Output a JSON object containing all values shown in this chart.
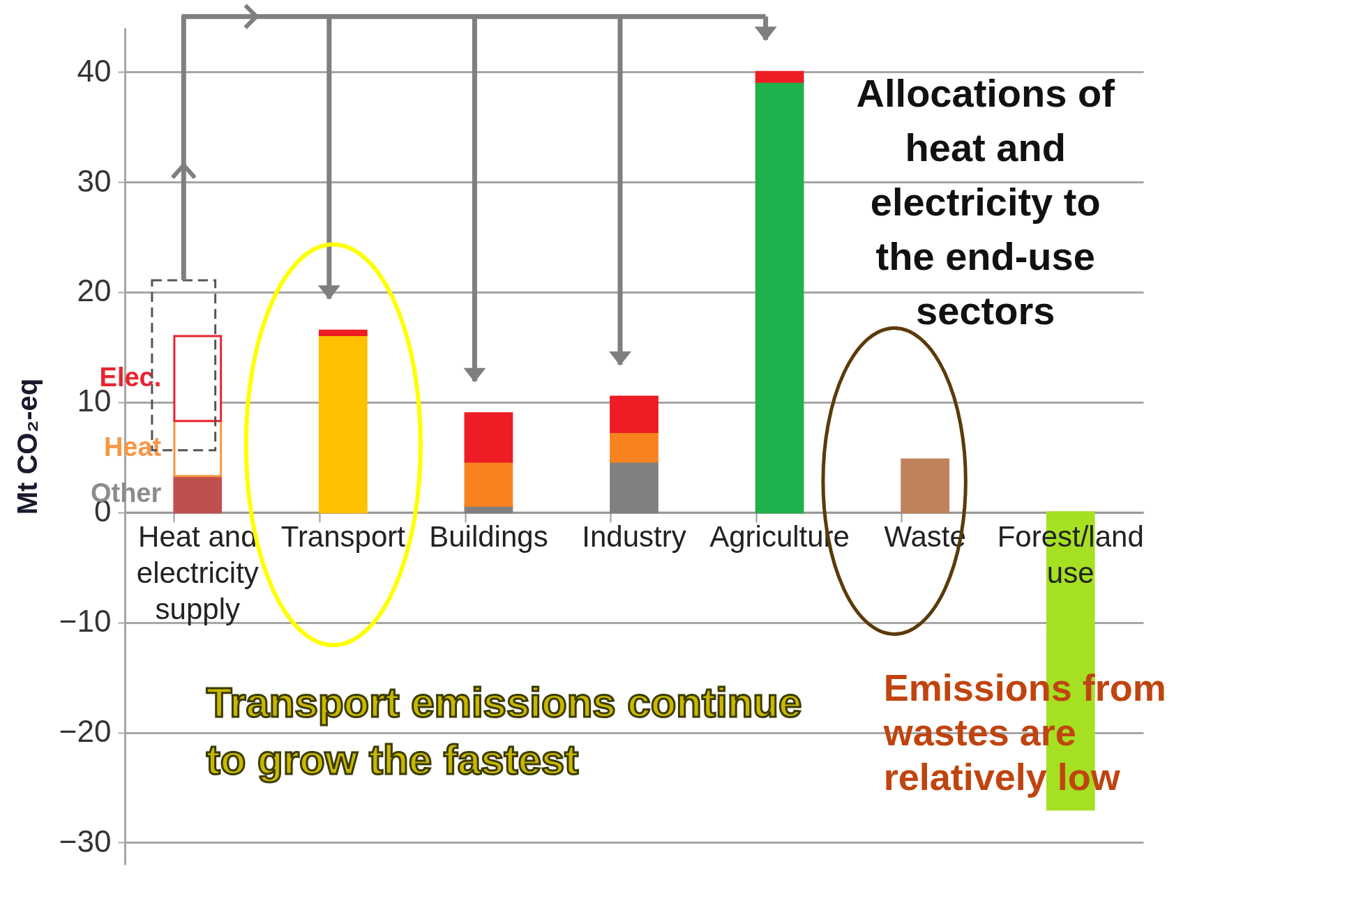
{
  "chart_data": {
    "type": "bar",
    "stacked": true,
    "categories": [
      "Heat and electricity supply",
      "Transport",
      "Buildings",
      "Industry",
      "Agriculture",
      "Waste",
      "Forest/land use"
    ],
    "ylabel": "Mt CO₂-eq",
    "ylim": [
      -32,
      44
    ],
    "yticks": [
      -30,
      -20,
      -10,
      0,
      10,
      20,
      30,
      40
    ],
    "grid": "y",
    "annotations": [
      "Allocations of heat and electricity to the end-use sectors",
      "Transport emissions continue to grow the fastest",
      "Emissions from wastes are relatively low"
    ],
    "series": [
      {
        "name": "Other",
        "color": "#8c8c8c",
        "colors": [
          "#c0504d",
          "#ffc000",
          "#808080",
          "#808080",
          "#1fb14c",
          "#c0825a",
          "#a6e022"
        ],
        "values": [
          3.3,
          16.1,
          0.6,
          4.6,
          39.1,
          4.8,
          -27
        ]
      },
      {
        "name": "Heat",
        "color": "#f79646",
        "colors": [
          "#ffffff",
          null,
          "#f7821e",
          "#f7821e",
          null,
          null,
          null
        ],
        "values": [
          5,
          null,
          4,
          2.7,
          null,
          null,
          null
        ]
      },
      {
        "name": "Elec.",
        "color": "#e8252f",
        "colors": [
          "#ffffff",
          "#ee1c24",
          "#ee1c24",
          "#ee1c24",
          "#ee1c24",
          null,
          null
        ],
        "values": [
          7.7,
          0.4,
          4.4,
          3.2,
          0.9,
          null,
          null
        ]
      }
    ]
  }
}
